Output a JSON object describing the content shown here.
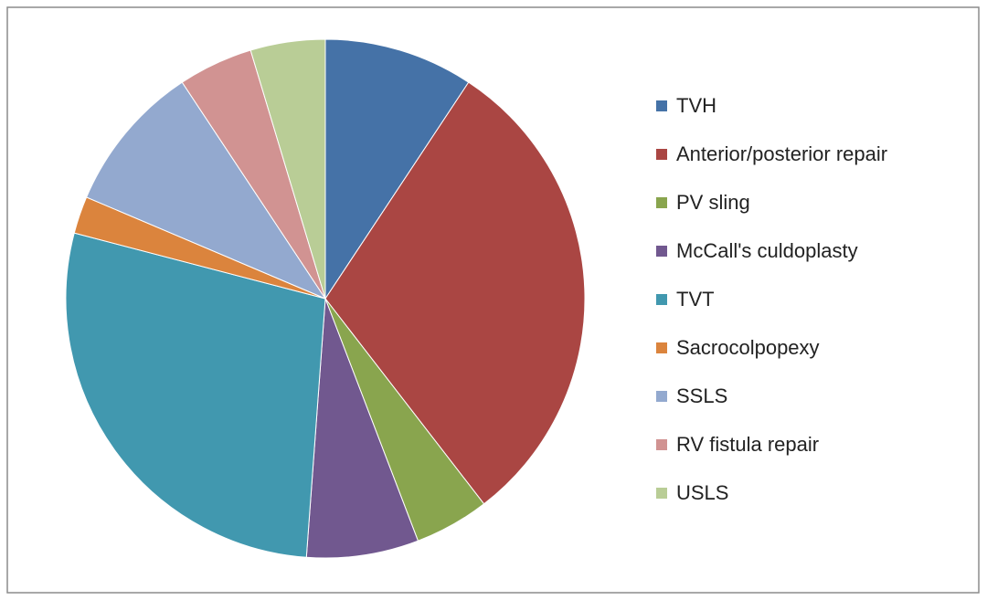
{
  "chart_data": {
    "type": "pie",
    "categories": [
      "TVH",
      "Anterior/posterior repair",
      "PV sling",
      "McCall's culdoplasty",
      "TVT",
      "Sacrocolpopexy",
      "SSLS",
      "RV fistula repair",
      "USLS"
    ],
    "values": [
      4,
      13,
      2,
      3,
      12,
      1,
      4,
      2,
      2
    ],
    "colors": [
      "#4572a7",
      "#aa4643",
      "#89a54e",
      "#71588f",
      "#4198af",
      "#db843d",
      "#93a9cf",
      "#d19392",
      "#b9cd96"
    ],
    "legend": "right"
  }
}
